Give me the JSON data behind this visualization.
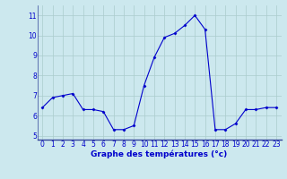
{
  "x": [
    0,
    1,
    2,
    3,
    4,
    5,
    6,
    7,
    8,
    9,
    10,
    11,
    12,
    13,
    14,
    15,
    16,
    17,
    18,
    19,
    20,
    21,
    22,
    23
  ],
  "y": [
    6.4,
    6.9,
    7.0,
    7.1,
    6.3,
    6.3,
    6.2,
    5.3,
    5.3,
    5.5,
    7.5,
    8.9,
    9.9,
    10.1,
    10.5,
    11.0,
    10.3,
    5.3,
    5.3,
    5.6,
    6.3,
    6.3,
    6.4,
    6.4
  ],
  "line_color": "#0000cc",
  "marker": "D",
  "marker_size": 1.5,
  "bg_color": "#cce8ee",
  "grid_color": "#aacccc",
  "xlabel": "Graphe des températures (°c)",
  "xlabel_color": "#0000cc",
  "tick_color": "#0000cc",
  "axis_color": "#334499",
  "ylim": [
    4.8,
    11.5
  ],
  "xlim": [
    -0.5,
    23.5
  ],
  "yticks": [
    5,
    6,
    7,
    8,
    9,
    10,
    11
  ],
  "xticks": [
    0,
    1,
    2,
    3,
    4,
    5,
    6,
    7,
    8,
    9,
    10,
    11,
    12,
    13,
    14,
    15,
    16,
    17,
    18,
    19,
    20,
    21,
    22,
    23
  ],
  "linewidth": 0.8,
  "tick_fontsize": 5.5,
  "xlabel_fontsize": 6.5
}
